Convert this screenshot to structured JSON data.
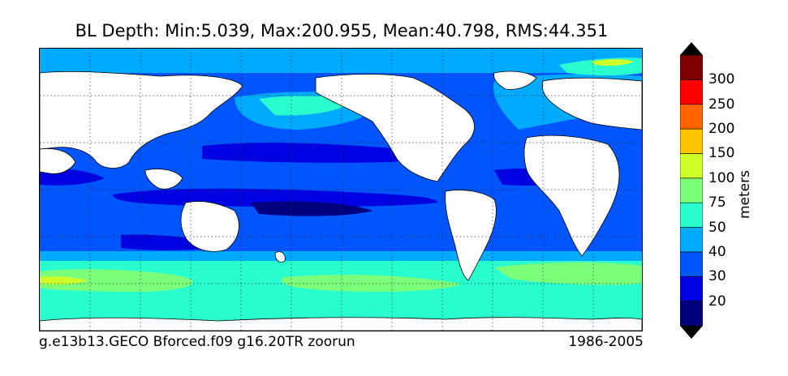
{
  "title": "BL Depth: Min:5.039, Max:200.955, Mean:40.798, RMS:44.351",
  "footer": {
    "case_name": "g.e13b13.GECO Bforced.f09 g16.20TR zoorun",
    "years": "1986-2005"
  },
  "colorbar": {
    "units": "meters",
    "tick_labels": [
      "20",
      "30",
      "40",
      "50",
      "75",
      "100",
      "150",
      "200",
      "250",
      "300"
    ],
    "colors": [
      "#00007f",
      "#0000e0",
      "#0055ff",
      "#00aaff",
      "#29ffce",
      "#7bff7b",
      "#ceff29",
      "#ffc400",
      "#ff6300",
      "#ff0000",
      "#7f0000"
    ]
  },
  "map": {
    "land_color": "#ffffff",
    "grid": "dotted",
    "projection": "cylindrical, 0E-360E"
  }
}
